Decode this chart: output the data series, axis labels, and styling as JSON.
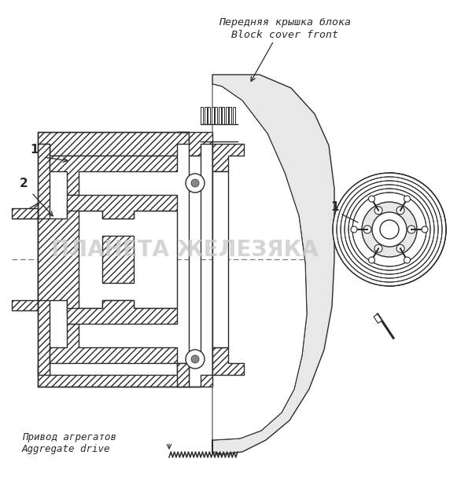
{
  "title_ru": "Передняя крышка блока",
  "title_en": "Block cover front",
  "label1_ru": "Привод агрегатов",
  "label1_en": "Aggregate drive",
  "watermark": "ПЛАНЕТА ЖЕЛЕЗЯКА",
  "bg_color": "#ffffff",
  "line_color": "#2a2a2a",
  "fig_width": 6.0,
  "fig_height": 6.07
}
